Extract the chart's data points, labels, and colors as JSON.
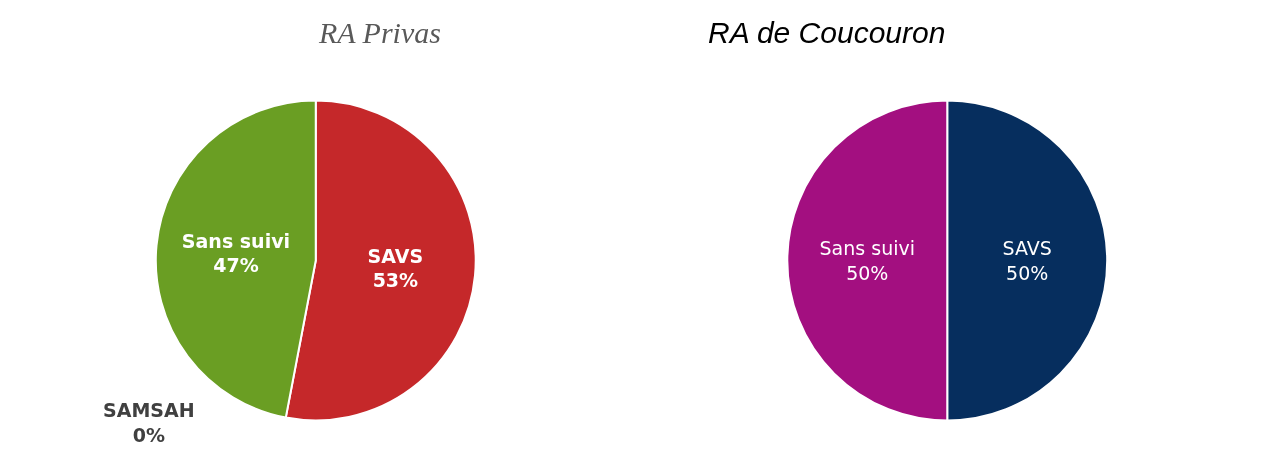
{
  "chart_data": [
    {
      "type": "pie",
      "title": "RA Privas",
      "categories": [
        "SAVS",
        "SAMSAH",
        "Sans suivi"
      ],
      "values": [
        53,
        0,
        47
      ],
      "colors": [
        "#c5282a",
        "#a6a6a6",
        "#6a9e23"
      ],
      "value_labels": [
        "53%",
        "0%",
        "47%"
      ]
    },
    {
      "type": "pie",
      "title": "RA de Coucouron",
      "categories": [
        "SAVS",
        "Sans suivi"
      ],
      "values": [
        50,
        50
      ],
      "colors": [
        "#062e5e",
        "#a30f80"
      ],
      "value_labels": [
        "50%",
        "50%"
      ]
    }
  ]
}
